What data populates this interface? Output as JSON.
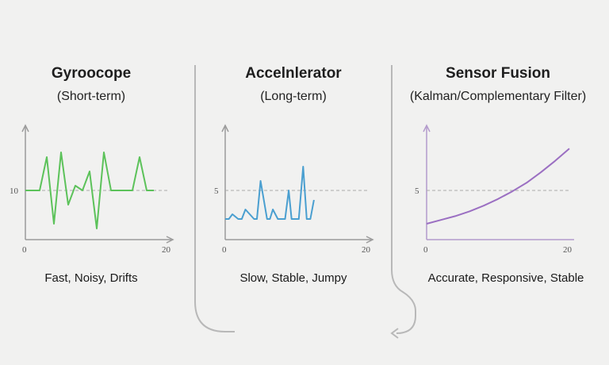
{
  "panels": [
    {
      "title": "Gyroocope",
      "subtitle": "(Short-term)",
      "caption": "Fast, Noisy, Drifts",
      "y_ref_label": "10",
      "x_start_label": "0",
      "x_end_label": "20",
      "color": "#5cc25a"
    },
    {
      "title": "Accelnlerator",
      "subtitle": "(Long-term)",
      "caption": "Slow, Stable, Jumpy",
      "y_ref_label": "5",
      "x_start_label": "0",
      "x_end_label": "20",
      "color": "#4a9fd0"
    },
    {
      "title": "Sensor Fusion",
      "subtitle": "(Kalman/Complementary Filter)",
      "caption": "Accurate, Responsive, Stable",
      "y_ref_label": "5",
      "x_start_label": "0",
      "x_end_label": "20",
      "color": "#9b6fc2"
    }
  ],
  "chart_data": [
    {
      "type": "line",
      "xlim": [
        0,
        20
      ],
      "ylim": [
        0,
        20
      ],
      "y_reference": 10,
      "x": [
        0,
        2,
        3,
        4,
        5,
        6,
        7,
        8,
        9,
        10,
        11,
        12,
        13,
        14,
        15,
        16,
        17,
        18
      ],
      "y": [
        10,
        10,
        17,
        3,
        18,
        7,
        11,
        10,
        14,
        2,
        18,
        10,
        10,
        10,
        10,
        17,
        10,
        10
      ]
    },
    {
      "type": "line",
      "xlim": [
        0,
        20
      ],
      "ylim": [
        0,
        10
      ],
      "y_reference": 5,
      "x": [
        0,
        0.5,
        1,
        1.8,
        2.3,
        2.8,
        4.0,
        4.4,
        4.9,
        5.8,
        6.2,
        6.6,
        7.3,
        8.3,
        8.8,
        9.2,
        10.2,
        10.8,
        11.3,
        11.8,
        12.3
      ],
      "y": [
        2,
        2,
        2.5,
        2,
        2,
        3,
        2,
        2,
        6,
        2,
        2,
        3,
        2,
        2,
        5,
        2,
        2,
        7.5,
        2,
        2,
        4
      ]
    },
    {
      "type": "line",
      "xlim": [
        0,
        20
      ],
      "ylim": [
        0,
        10
      ],
      "y_reference": 5,
      "x": [
        0,
        2,
        4,
        6,
        8,
        10,
        12,
        14,
        16,
        18,
        20
      ],
      "y": [
        1.5,
        1.9,
        2.3,
        2.8,
        3.4,
        4.1,
        4.9,
        5.8,
        6.9,
        8.1,
        9.4
      ]
    }
  ]
}
